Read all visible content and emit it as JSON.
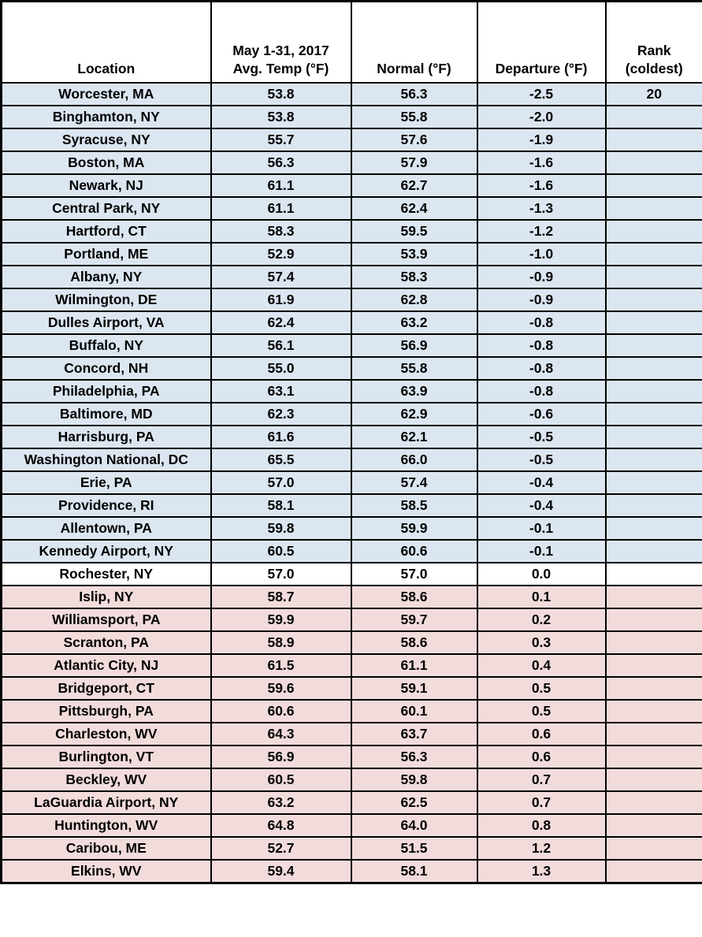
{
  "colors": {
    "below": "#DCE6F1",
    "zero": "#FFFFFF",
    "above": "#F2DCDB",
    "border": "#000000",
    "text": "#000000"
  },
  "chart_data": {
    "type": "table",
    "title": "",
    "headers": [
      "Location",
      "May 1-31, 2017\nAvg. Temp (°F)",
      "Normal (°F)",
      "Departure (°F)",
      "Rank\n(coldest)"
    ],
    "shade_legend": {
      "below": "below normal (light blue)",
      "zero": "exactly normal (white)",
      "above": "above normal (light rose)"
    },
    "rows": [
      {
        "location": "Worcester, MA",
        "avg_temp": "53.8",
        "normal": "56.3",
        "departure": "-2.5",
        "rank": "20",
        "shade": "below"
      },
      {
        "location": "Binghamton, NY",
        "avg_temp": "53.8",
        "normal": "55.8",
        "departure": "-2.0",
        "rank": "",
        "shade": "below"
      },
      {
        "location": "Syracuse, NY",
        "avg_temp": "55.7",
        "normal": "57.6",
        "departure": "-1.9",
        "rank": "",
        "shade": "below"
      },
      {
        "location": "Boston, MA",
        "avg_temp": "56.3",
        "normal": "57.9",
        "departure": "-1.6",
        "rank": "",
        "shade": "below"
      },
      {
        "location": "Newark, NJ",
        "avg_temp": "61.1",
        "normal": "62.7",
        "departure": "-1.6",
        "rank": "",
        "shade": "below"
      },
      {
        "location": "Central Park, NY",
        "avg_temp": "61.1",
        "normal": "62.4",
        "departure": "-1.3",
        "rank": "",
        "shade": "below"
      },
      {
        "location": "Hartford, CT",
        "avg_temp": "58.3",
        "normal": "59.5",
        "departure": "-1.2",
        "rank": "",
        "shade": "below"
      },
      {
        "location": "Portland, ME",
        "avg_temp": "52.9",
        "normal": "53.9",
        "departure": "-1.0",
        "rank": "",
        "shade": "below"
      },
      {
        "location": "Albany, NY",
        "avg_temp": "57.4",
        "normal": "58.3",
        "departure": "-0.9",
        "rank": "",
        "shade": "below"
      },
      {
        "location": "Wilmington, DE",
        "avg_temp": "61.9",
        "normal": "62.8",
        "departure": "-0.9",
        "rank": "",
        "shade": "below"
      },
      {
        "location": "Dulles Airport, VA",
        "avg_temp": "62.4",
        "normal": "63.2",
        "departure": "-0.8",
        "rank": "",
        "shade": "below"
      },
      {
        "location": "Buffalo, NY",
        "avg_temp": "56.1",
        "normal": "56.9",
        "departure": "-0.8",
        "rank": "",
        "shade": "below"
      },
      {
        "location": "Concord, NH",
        "avg_temp": "55.0",
        "normal": "55.8",
        "departure": "-0.8",
        "rank": "",
        "shade": "below"
      },
      {
        "location": "Philadelphia, PA",
        "avg_temp": "63.1",
        "normal": "63.9",
        "departure": "-0.8",
        "rank": "",
        "shade": "below"
      },
      {
        "location": "Baltimore, MD",
        "avg_temp": "62.3",
        "normal": "62.9",
        "departure": "-0.6",
        "rank": "",
        "shade": "below"
      },
      {
        "location": "Harrisburg, PA",
        "avg_temp": "61.6",
        "normal": "62.1",
        "departure": "-0.5",
        "rank": "",
        "shade": "below"
      },
      {
        "location": "Washington National, DC",
        "avg_temp": "65.5",
        "normal": "66.0",
        "departure": "-0.5",
        "rank": "",
        "shade": "below"
      },
      {
        "location": "Erie, PA",
        "avg_temp": "57.0",
        "normal": "57.4",
        "departure": "-0.4",
        "rank": "",
        "shade": "below"
      },
      {
        "location": "Providence, RI",
        "avg_temp": "58.1",
        "normal": "58.5",
        "departure": "-0.4",
        "rank": "",
        "shade": "below"
      },
      {
        "location": "Allentown, PA",
        "avg_temp": "59.8",
        "normal": "59.9",
        "departure": "-0.1",
        "rank": "",
        "shade": "below"
      },
      {
        "location": "Kennedy Airport, NY",
        "avg_temp": "60.5",
        "normal": "60.6",
        "departure": "-0.1",
        "rank": "",
        "shade": "below"
      },
      {
        "location": "Rochester, NY",
        "avg_temp": "57.0",
        "normal": "57.0",
        "departure": "0.0",
        "rank": "",
        "shade": "zero"
      },
      {
        "location": "Islip, NY",
        "avg_temp": "58.7",
        "normal": "58.6",
        "departure": "0.1",
        "rank": "",
        "shade": "above"
      },
      {
        "location": "Williamsport, PA",
        "avg_temp": "59.9",
        "normal": "59.7",
        "departure": "0.2",
        "rank": "",
        "shade": "above"
      },
      {
        "location": "Scranton, PA",
        "avg_temp": "58.9",
        "normal": "58.6",
        "departure": "0.3",
        "rank": "",
        "shade": "above"
      },
      {
        "location": "Atlantic City, NJ",
        "avg_temp": "61.5",
        "normal": "61.1",
        "departure": "0.4",
        "rank": "",
        "shade": "above"
      },
      {
        "location": "Bridgeport, CT",
        "avg_temp": "59.6",
        "normal": "59.1",
        "departure": "0.5",
        "rank": "",
        "shade": "above"
      },
      {
        "location": "Pittsburgh, PA",
        "avg_temp": "60.6",
        "normal": "60.1",
        "departure": "0.5",
        "rank": "",
        "shade": "above"
      },
      {
        "location": "Charleston, WV",
        "avg_temp": "64.3",
        "normal": "63.7",
        "departure": "0.6",
        "rank": "",
        "shade": "above"
      },
      {
        "location": "Burlington, VT",
        "avg_temp": "56.9",
        "normal": "56.3",
        "departure": "0.6",
        "rank": "",
        "shade": "above"
      },
      {
        "location": "Beckley, WV",
        "avg_temp": "60.5",
        "normal": "59.8",
        "departure": "0.7",
        "rank": "",
        "shade": "above"
      },
      {
        "location": "LaGuardia Airport, NY",
        "avg_temp": "63.2",
        "normal": "62.5",
        "departure": "0.7",
        "rank": "",
        "shade": "above"
      },
      {
        "location": "Huntington, WV",
        "avg_temp": "64.8",
        "normal": "64.0",
        "departure": "0.8",
        "rank": "",
        "shade": "above"
      },
      {
        "location": "Caribou, ME",
        "avg_temp": "52.7",
        "normal": "51.5",
        "departure": "1.2",
        "rank": "",
        "shade": "above"
      },
      {
        "location": "Elkins, WV",
        "avg_temp": "59.4",
        "normal": "58.1",
        "departure": "1.3",
        "rank": "",
        "shade": "above"
      }
    ]
  }
}
